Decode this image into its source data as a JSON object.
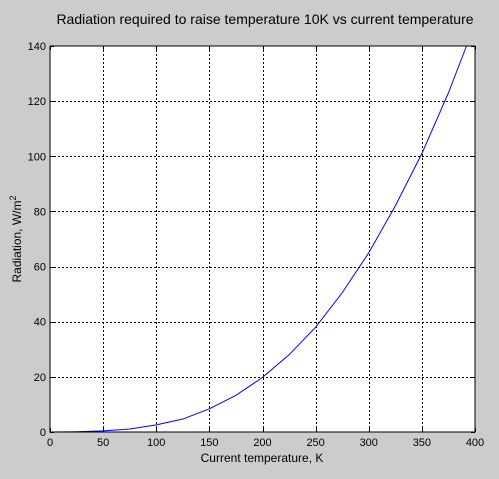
{
  "chart_data": {
    "type": "line",
    "title": "Radiation required to raise temperature 10K vs current temperature",
    "xlabel": "Current temperature, K",
    "ylabel": "Radiation, W/m",
    "ylabel_superscript": "2",
    "xlim": [
      0,
      400
    ],
    "ylim": [
      0,
      140
    ],
    "xticks": [
      0,
      50,
      100,
      150,
      200,
      250,
      300,
      350,
      400
    ],
    "yticks": [
      0,
      20,
      40,
      60,
      80,
      100,
      120,
      140
    ],
    "xtick_labels": [
      "0",
      "50",
      "100",
      "150",
      "200",
      "250",
      "300",
      "350",
      "400"
    ],
    "ytick_labels": [
      "0",
      "20",
      "40",
      "60",
      "80",
      "100",
      "120",
      "140"
    ],
    "grid": true,
    "grid_style": "dotted",
    "series": [
      {
        "color": "#0000ff",
        "x": [
          0,
          25,
          50,
          75,
          100,
          125,
          150,
          175,
          200,
          225,
          250,
          275,
          300,
          325,
          350,
          375,
          392
        ],
        "y": [
          0,
          0.1,
          0.4,
          1.1,
          2.6,
          4.7,
          8.4,
          13.3,
          19.8,
          28.0,
          38.0,
          50.5,
          65.0,
          82.0,
          101.0,
          123.0,
          140.0
        ]
      }
    ],
    "colors": {
      "figure_background": "#cccccc",
      "plot_background": "#ffffff",
      "line": "#0000ff",
      "grid": "#000000"
    }
  }
}
